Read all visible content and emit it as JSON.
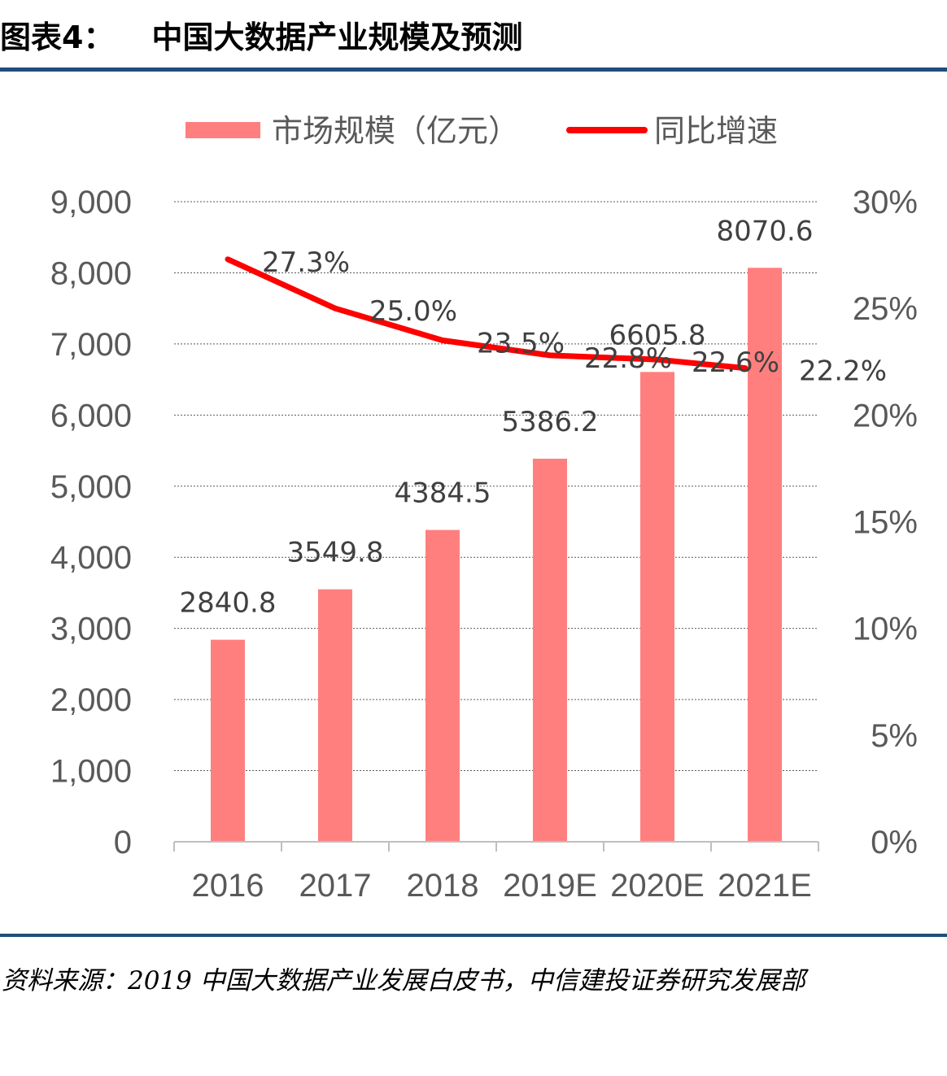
{
  "title": {
    "number": "图表4：",
    "text": "中国大数据产业规模及预测"
  },
  "chart_data": {
    "type": "bar",
    "categories": [
      "2016",
      "2017",
      "2018",
      "2019E",
      "2020E",
      "2021E"
    ],
    "series": [
      {
        "name": "市场规模（亿元）",
        "type": "bar",
        "axis": "left",
        "color": "#ff7f7f",
        "values": [
          2840.8,
          3549.8,
          4384.5,
          5386.2,
          6605.8,
          8070.6
        ],
        "labels": [
          "2840.8",
          "3549.8",
          "4384.5",
          "5386.2",
          "6605.8",
          "8070.6"
        ]
      },
      {
        "name": "同比增速",
        "type": "line",
        "axis": "right",
        "color": "#ff0000",
        "values": [
          27.3,
          25.0,
          23.5,
          22.8,
          22.6,
          22.2
        ],
        "labels": [
          "27.3%",
          "25.0%",
          "23.5%",
          "22.8%",
          "22.6%",
          "22.2%"
        ]
      }
    ],
    "y_left": {
      "lim": [
        0,
        9000
      ],
      "ticks": [
        "0",
        "1,000",
        "2,000",
        "3,000",
        "4,000",
        "5,000",
        "6,000",
        "7,000",
        "8,000",
        "9,000"
      ]
    },
    "y_right": {
      "lim": [
        0,
        30
      ],
      "ticks": [
        "0%",
        "5%",
        "10%",
        "15%",
        "20%",
        "25%",
        "30%"
      ]
    },
    "grid": "horizontal-dashed",
    "legend": "top"
  },
  "source": "资料来源：2019 中国大数据产业发展白皮书，中信建投证券研究发展部"
}
